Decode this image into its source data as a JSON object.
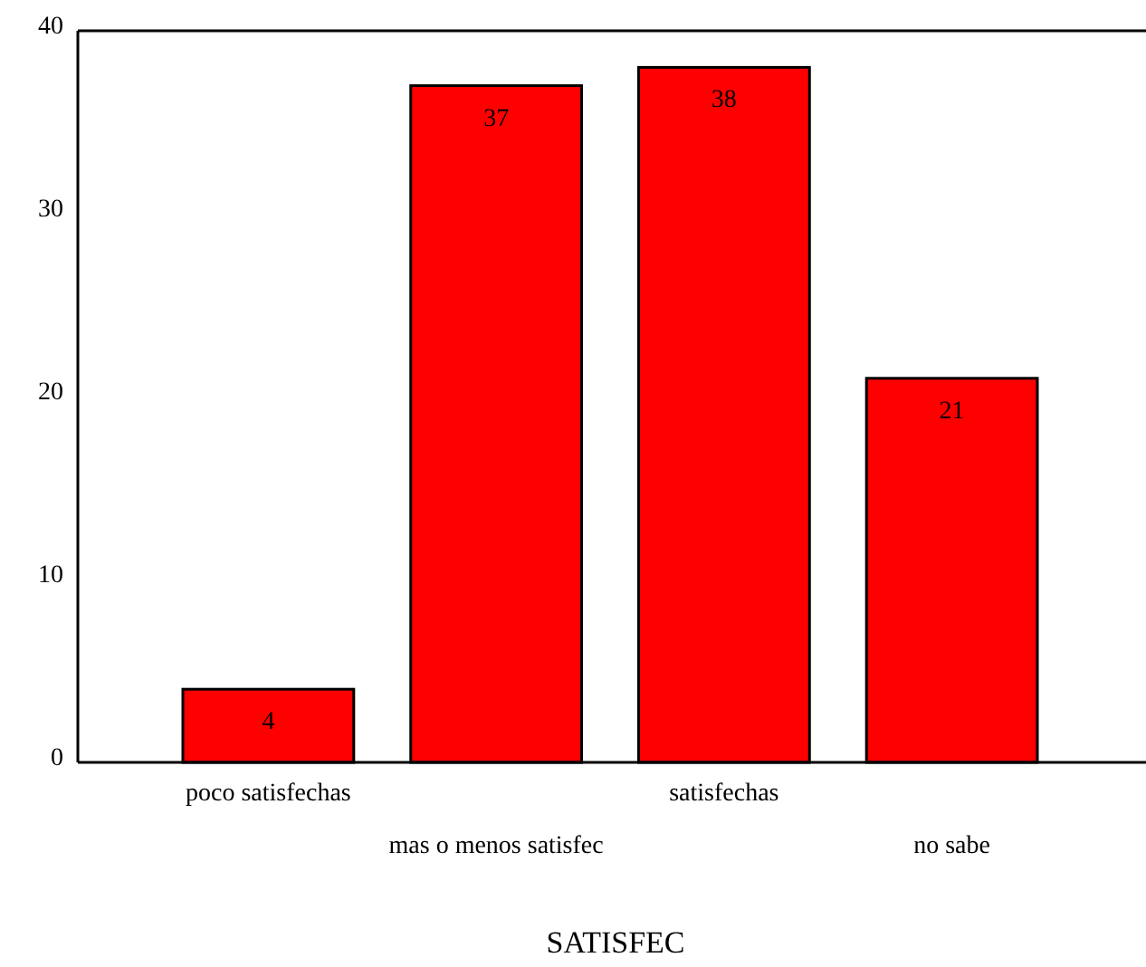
{
  "chart_data": {
    "type": "bar",
    "xlabel": "SATISFEC",
    "categories": [
      "poco satisfechas",
      "mas o menos satisfec",
      "satisfechas",
      "no sabe"
    ],
    "values": [
      4,
      37,
      38,
      21
    ],
    "color": "#ff0000",
    "ylim": [
      0,
      40
    ],
    "yticks": [
      0,
      10,
      20,
      30,
      40
    ],
    "grid": false,
    "data_labels": true
  }
}
